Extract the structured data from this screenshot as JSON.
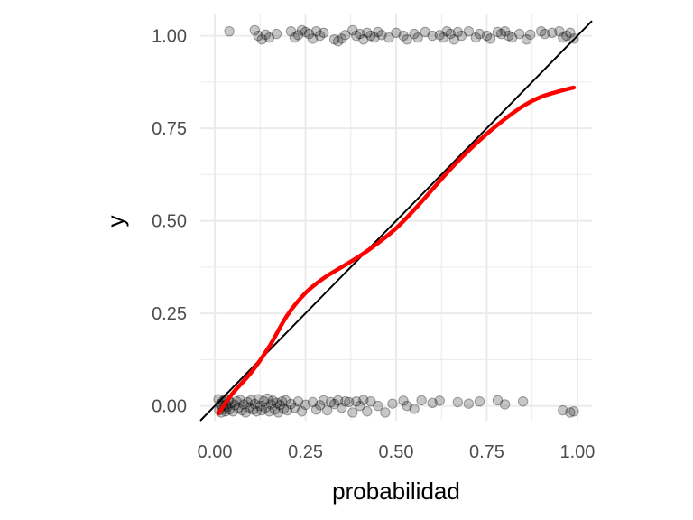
{
  "chart_data": {
    "type": "scatter",
    "title": "",
    "xlabel": "probabilidad",
    "ylabel": "y",
    "xlim": [
      -0.04,
      1.04
    ],
    "ylim": [
      -0.04,
      1.06
    ],
    "grid": true,
    "x_ticks": [
      0.0,
      0.25,
      0.5,
      0.75,
      1.0
    ],
    "x_tick_labels": [
      "0.00",
      "0.25",
      "0.50",
      "0.75",
      "1.00"
    ],
    "y_ticks": [
      0.0,
      0.25,
      0.5,
      0.75,
      1.0
    ],
    "y_tick_labels": [
      "0.00",
      "0.25",
      "0.50",
      "0.75",
      "1.00"
    ],
    "colors": {
      "points": "#000000",
      "smooth": "#ff0000",
      "reference": "#000000",
      "grid": "#ebebeb"
    },
    "points": [
      [
        0.04,
        1.012
      ],
      [
        0.11,
        1.015
      ],
      [
        0.12,
        1.0
      ],
      [
        0.13,
        0.99
      ],
      [
        0.14,
        1.003
      ],
      [
        0.15,
        0.995
      ],
      [
        0.17,
        1.005
      ],
      [
        0.21,
        1.012
      ],
      [
        0.22,
        0.995
      ],
      [
        0.23,
        1.002
      ],
      [
        0.24,
        1.015
      ],
      [
        0.25,
        1.01
      ],
      [
        0.26,
        1.005
      ],
      [
        0.27,
        0.992
      ],
      [
        0.28,
        1.012
      ],
      [
        0.29,
        1.0
      ],
      [
        0.3,
        1.008
      ],
      [
        0.33,
        0.99
      ],
      [
        0.34,
        0.985
      ],
      [
        0.35,
        0.992
      ],
      [
        0.36,
        1.002
      ],
      [
        0.38,
        1.015
      ],
      [
        0.39,
        1.0
      ],
      [
        0.4,
        1.005
      ],
      [
        0.41,
        0.99
      ],
      [
        0.42,
        1.008
      ],
      [
        0.43,
        1.0
      ],
      [
        0.44,
        0.995
      ],
      [
        0.45,
        1.01
      ],
      [
        0.46,
        1.002
      ],
      [
        0.48,
        0.995
      ],
      [
        0.5,
        1.008
      ],
      [
        0.52,
        1.0
      ],
      [
        0.53,
        0.99
      ],
      [
        0.55,
        1.005
      ],
      [
        0.56,
        0.995
      ],
      [
        0.58,
        1.01
      ],
      [
        0.6,
        1.0
      ],
      [
        0.62,
        1.002
      ],
      [
        0.63,
        0.995
      ],
      [
        0.64,
        1.012
      ],
      [
        0.65,
        1.005
      ],
      [
        0.66,
        0.99
      ],
      [
        0.67,
        1.01
      ],
      [
        0.68,
        1.0
      ],
      [
        0.7,
        1.012
      ],
      [
        0.72,
        0.995
      ],
      [
        0.73,
        1.005
      ],
      [
        0.75,
        1.0
      ],
      [
        0.76,
        0.992
      ],
      [
        0.78,
        1.01
      ],
      [
        0.79,
        1.005
      ],
      [
        0.8,
        1.012
      ],
      [
        0.81,
        1.0
      ],
      [
        0.82,
        0.995
      ],
      [
        0.84,
        1.005
      ],
      [
        0.86,
        0.99
      ],
      [
        0.87,
        1.003
      ],
      [
        0.9,
        1.012
      ],
      [
        0.91,
        1.005
      ],
      [
        0.93,
        1.008
      ],
      [
        0.95,
        1.012
      ],
      [
        0.96,
        0.995
      ],
      [
        0.97,
        1.0
      ],
      [
        0.98,
        1.008
      ],
      [
        0.99,
        0.992
      ],
      [
        0.01,
        0.018
      ],
      [
        0.012,
        -0.012
      ],
      [
        0.015,
        0.005
      ],
      [
        0.018,
        -0.018
      ],
      [
        0.02,
        0.0
      ],
      [
        0.022,
        0.012
      ],
      [
        0.025,
        -0.008
      ],
      [
        0.028,
        0.018
      ],
      [
        0.03,
        -0.015
      ],
      [
        0.032,
        0.004
      ],
      [
        0.035,
        -0.002
      ],
      [
        0.038,
        0.015
      ],
      [
        0.04,
        -0.01
      ],
      [
        0.045,
        0.008
      ],
      [
        0.05,
        -0.015
      ],
      [
        0.055,
        0.002
      ],
      [
        0.06,
        0.012
      ],
      [
        0.065,
        -0.005
      ],
      [
        0.07,
        0.016
      ],
      [
        0.075,
        -0.012
      ],
      [
        0.08,
        0.004
      ],
      [
        0.085,
        -0.018
      ],
      [
        0.09,
        0.01
      ],
      [
        0.095,
        -0.004
      ],
      [
        0.1,
        0.015
      ],
      [
        0.105,
        -0.01
      ],
      [
        0.11,
        0.005
      ],
      [
        0.115,
        -0.015
      ],
      [
        0.12,
        0.018
      ],
      [
        0.125,
        0.0
      ],
      [
        0.13,
        -0.012
      ],
      [
        0.135,
        0.012
      ],
      [
        0.14,
        -0.005
      ],
      [
        0.145,
        0.02
      ],
      [
        0.15,
        -0.015
      ],
      [
        0.155,
        0.004
      ],
      [
        0.16,
        0.014
      ],
      [
        0.165,
        -0.01
      ],
      [
        0.17,
        0.008
      ],
      [
        0.175,
        -0.018
      ],
      [
        0.18,
        0.002
      ],
      [
        0.185,
        0.012
      ],
      [
        0.19,
        -0.008
      ],
      [
        0.195,
        0.015
      ],
      [
        0.2,
        -0.012
      ],
      [
        0.21,
        0.005
      ],
      [
        0.22,
        -0.005
      ],
      [
        0.23,
        0.012
      ],
      [
        0.24,
        -0.015
      ],
      [
        0.25,
        0.003
      ],
      [
        0.27,
        0.01
      ],
      [
        0.28,
        -0.01
      ],
      [
        0.29,
        0.002
      ],
      [
        0.3,
        0.015
      ],
      [
        0.31,
        -0.012
      ],
      [
        0.32,
        0.01
      ],
      [
        0.33,
        0.005
      ],
      [
        0.34,
        0.015
      ],
      [
        0.35,
        -0.005
      ],
      [
        0.36,
        0.012
      ],
      [
        0.37,
        0.01
      ],
      [
        0.38,
        -0.018
      ],
      [
        0.39,
        0.012
      ],
      [
        0.4,
        0.0
      ],
      [
        0.41,
        0.016
      ],
      [
        0.42,
        -0.015
      ],
      [
        0.43,
        0.012
      ],
      [
        0.45,
        0.0
      ],
      [
        0.47,
        -0.018
      ],
      [
        0.49,
        0.006
      ],
      [
        0.52,
        0.014
      ],
      [
        0.53,
        0.0
      ],
      [
        0.55,
        -0.008
      ],
      [
        0.57,
        0.015
      ],
      [
        0.6,
        0.008
      ],
      [
        0.62,
        0.014
      ],
      [
        0.67,
        0.01
      ],
      [
        0.7,
        0.006
      ],
      [
        0.73,
        0.012
      ],
      [
        0.78,
        0.015
      ],
      [
        0.8,
        0.004
      ],
      [
        0.85,
        0.012
      ],
      [
        0.96,
        -0.012
      ],
      [
        0.98,
        -0.018
      ],
      [
        0.99,
        -0.015
      ]
    ],
    "series": [
      {
        "type": "line",
        "x": [
          0.0,
          1.0
        ],
        "y": [
          0.0,
          1.0
        ]
      },
      {
        "type": "smooth",
        "x": [
          0.01,
          0.05,
          0.1,
          0.15,
          0.2,
          0.25,
          0.3,
          0.35,
          0.4,
          0.45,
          0.5,
          0.55,
          0.6,
          0.65,
          0.7,
          0.75,
          0.8,
          0.85,
          0.9,
          0.95,
          0.99
        ],
        "y": [
          -0.02,
          0.035,
          0.09,
          0.16,
          0.245,
          0.305,
          0.345,
          0.375,
          0.405,
          0.44,
          0.48,
          0.53,
          0.585,
          0.64,
          0.69,
          0.735,
          0.775,
          0.81,
          0.835,
          0.85,
          0.86
        ]
      }
    ]
  }
}
